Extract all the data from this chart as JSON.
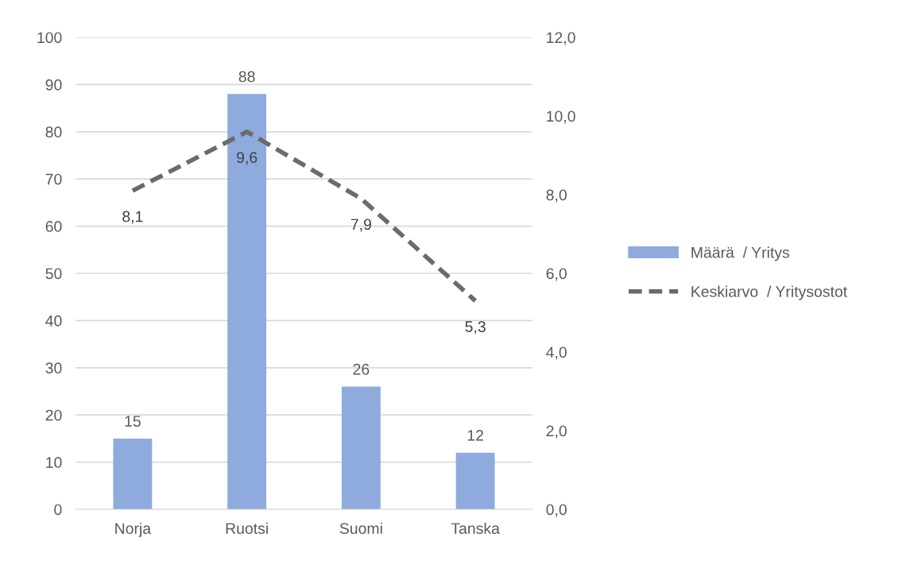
{
  "chart_data": {
    "type": "bar",
    "categories": [
      "Norja",
      "Ruotsi",
      "Suomi",
      "Tanska"
    ],
    "series": [
      {
        "name": "Määrä  / Yritys",
        "color": "#8faadc",
        "values": [
          15,
          88,
          26,
          12
        ],
        "value_labels": [
          "15",
          "88",
          "26",
          "12"
        ]
      },
      {
        "name": "Keskiarvo  / Yritysostot",
        "type": "line",
        "axis": "y2",
        "color": "#6b6b6b",
        "line_style": "dashed",
        "values": [
          8.1,
          9.6,
          7.9,
          5.3
        ],
        "value_labels": [
          "8,1",
          "9,6",
          "7,9",
          "5,3"
        ]
      }
    ],
    "ylim": [
      0,
      100
    ],
    "yticks": [
      0,
      10,
      20,
      30,
      40,
      50,
      60,
      70,
      80,
      90,
      100
    ],
    "y2lim": [
      0,
      12
    ],
    "y2ticks": [
      {
        "value": 0,
        "label": "0,0"
      },
      {
        "value": 2,
        "label": "2,0"
      },
      {
        "value": 4,
        "label": "4,0"
      },
      {
        "value": 6,
        "label": "6,0"
      },
      {
        "value": 8,
        "label": "8,0"
      },
      {
        "value": 10,
        "label": "10,0"
      },
      {
        "value": 12,
        "label": "12,0"
      }
    ],
    "grid": "y",
    "legend": "right",
    "marker": "none"
  }
}
